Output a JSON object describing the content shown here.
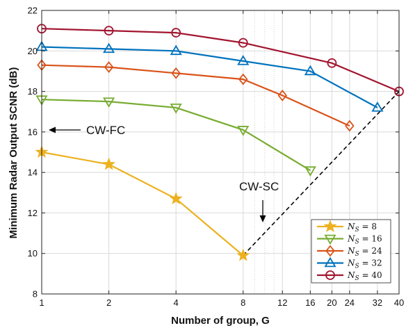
{
  "chart_data": {
    "type": "line",
    "xlabel": "Number of group, G",
    "ylabel": "Minimum Radar Output SCNR (dB)",
    "x_ticks": [
      1,
      2,
      4,
      8,
      12,
      16,
      20,
      24,
      32,
      40
    ],
    "x_tick_labels": [
      "1",
      "2",
      "4",
      "8",
      "12",
      "16",
      "20",
      "24",
      "32",
      "40"
    ],
    "xscale": "log",
    "xlim": [
      1,
      40
    ],
    "ylim": [
      8,
      22
    ],
    "y_ticks": [
      8,
      10,
      12,
      14,
      16,
      18,
      20,
      22
    ],
    "y_tick_labels": [
      "8",
      "10",
      "12",
      "14",
      "16",
      "18",
      "20",
      "22"
    ],
    "grid": true,
    "legend_position": "bottom-right",
    "series": [
      {
        "name": "N_S = 8",
        "legend": "N_S = 8",
        "color": "#EDB120",
        "marker": "star",
        "x": [
          1,
          2,
          4,
          8
        ],
        "y": [
          15.0,
          14.4,
          12.7,
          9.9
        ]
      },
      {
        "name": "N_S = 16",
        "legend": "N_S = 16",
        "color": "#77AC30",
        "marker": "triangle-down",
        "x": [
          1,
          2,
          4,
          8,
          16
        ],
        "y": [
          17.6,
          17.5,
          17.2,
          16.1,
          14.1
        ]
      },
      {
        "name": "N_S = 24",
        "legend": "N_S = 24",
        "color": "#D95319",
        "marker": "diamond",
        "x": [
          1,
          2,
          4,
          8,
          12,
          24
        ],
        "y": [
          19.3,
          19.2,
          18.9,
          18.6,
          17.8,
          16.3
        ]
      },
      {
        "name": "N_S = 32",
        "legend": "N_S = 32",
        "color": "#0072BD",
        "marker": "triangle-up",
        "x": [
          1,
          2,
          4,
          8,
          16,
          32
        ],
        "y": [
          20.2,
          20.1,
          20.0,
          19.5,
          19.0,
          17.2
        ]
      },
      {
        "name": "N_S = 40",
        "legend": "N_S = 40",
        "color": "#A2142F",
        "marker": "circle",
        "x": [
          1,
          2,
          4,
          8,
          20,
          40
        ],
        "y": [
          21.1,
          21.0,
          20.9,
          20.4,
          19.4,
          18.0
        ]
      }
    ],
    "reference_line": {
      "style": "dashed",
      "color": "#000000",
      "x": [
        8,
        40
      ],
      "y": [
        9.9,
        18.0
      ]
    },
    "annotations": [
      {
        "text": "CW-FC",
        "arrow": "left",
        "x": 1.0,
        "y": 16.0
      },
      {
        "text": "CW-SC",
        "arrow": "down",
        "x": 8.5,
        "y": 10.3
      }
    ]
  }
}
